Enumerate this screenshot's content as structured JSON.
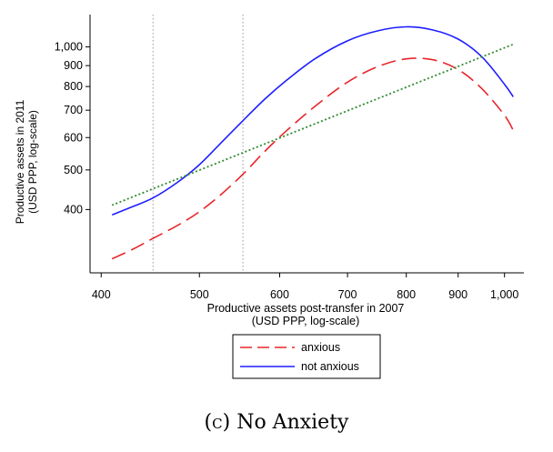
{
  "chart_data": {
    "type": "line",
    "xlabel": [
      "Productive assets post-transfer in 2007",
      "(USD PPP, log-scale)"
    ],
    "ylabel": [
      "Productive assets in 2011",
      "(USD PPP, log-scale)"
    ],
    "x_scale": "log",
    "y_scale": "log",
    "xlim": [
      390,
      1045
    ],
    "ylim": [
      280,
      1200
    ],
    "x_ticks": [
      400,
      500,
      600,
      700,
      800,
      900,
      1000
    ],
    "x_tick_labels": [
      "400",
      "500",
      "600",
      "700",
      "800",
      "900",
      "1,000"
    ],
    "y_ticks": [
      400,
      500,
      600,
      700,
      800,
      900,
      1000
    ],
    "y_tick_labels": [
      "400",
      "500",
      "600",
      "700",
      "800",
      "900",
      "1,000"
    ],
    "vertical_reference_lines": [
      450,
      552
    ],
    "grid": false,
    "legend_position": "bottom",
    "series": [
      {
        "name": "anxious",
        "style": "dashed",
        "color": "#e8262a",
        "x": [
          410,
          430,
          450,
          475,
          500,
          525,
          552,
          580,
          610,
          650,
          700,
          750,
          800,
          850,
          900,
          950,
          1000,
          1020
        ],
        "y": [
          303,
          320,
          340,
          365,
          395,
          435,
          488,
          555,
          625,
          715,
          820,
          895,
          935,
          930,
          880,
          790,
          680,
          625
        ]
      },
      {
        "name": "not anxious",
        "style": "solid",
        "color": "#1f1fff",
        "x": [
          410,
          430,
          450,
          475,
          500,
          525,
          552,
          580,
          610,
          650,
          700,
          750,
          800,
          850,
          900,
          950,
          1000,
          1020
        ],
        "y": [
          388,
          407,
          427,
          465,
          515,
          582,
          660,
          745,
          830,
          935,
          1035,
          1095,
          1120,
          1100,
          1045,
          945,
          810,
          755
        ]
      },
      {
        "name": "",
        "style": "dotted",
        "color": "#2e8b2e",
        "x": [
          410,
          1020
        ],
        "y": [
          410,
          1015
        ]
      }
    ]
  },
  "caption": {
    "label": "(c)",
    "text": "No Anxiety"
  }
}
